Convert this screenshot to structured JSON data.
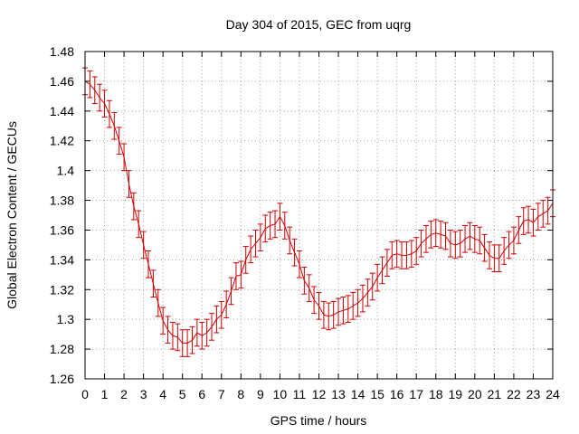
{
  "chart_data": {
    "type": "line",
    "title": "Day 304 of 2015, GEC from uqrg",
    "xlabel": "GPS time / hours",
    "ylabel": "Global Electron Content / GECUs",
    "xlim": [
      0,
      24
    ],
    "ylim": [
      1.26,
      1.48
    ],
    "xticks": [
      "0",
      "1",
      "2",
      "3",
      "4",
      "5",
      "6",
      "7",
      "8",
      "9",
      "10",
      "11",
      "12",
      "13",
      "14",
      "15",
      "16",
      "17",
      "18",
      "19",
      "20",
      "21",
      "22",
      "23",
      "24"
    ],
    "yticks": [
      "1.26",
      "1.28",
      "1.3",
      "1.32",
      "1.34",
      "1.36",
      "1.38",
      "1.4",
      "1.42",
      "1.44",
      "1.46",
      "1.48"
    ],
    "grid": true,
    "series": [
      {
        "color": "#cc0000",
        "error": 0.009,
        "x": [
          0,
          0.25,
          0.5,
          0.75,
          1,
          1.25,
          1.5,
          1.75,
          2,
          2.25,
          2.5,
          2.75,
          3,
          3.25,
          3.5,
          3.75,
          4,
          4.25,
          4.5,
          4.75,
          5,
          5.25,
          5.5,
          5.75,
          6,
          6.25,
          6.5,
          6.75,
          7,
          7.25,
          7.5,
          7.75,
          8,
          8.25,
          8.5,
          8.75,
          9,
          9.25,
          9.5,
          9.75,
          10,
          10.25,
          10.5,
          10.75,
          11,
          11.25,
          11.5,
          11.75,
          12,
          12.25,
          12.5,
          12.75,
          13,
          13.25,
          13.5,
          13.75,
          14,
          14.25,
          14.5,
          14.75,
          15,
          15.25,
          15.5,
          15.75,
          16,
          16.25,
          16.5,
          16.75,
          17,
          17.25,
          17.5,
          17.75,
          18,
          18.25,
          18.5,
          18.75,
          19,
          19.25,
          19.5,
          19.75,
          20,
          20.25,
          20.5,
          20.75,
          21,
          21.25,
          21.5,
          21.75,
          22,
          22.25,
          22.5,
          22.75,
          23,
          23.25,
          23.5,
          23.75,
          24
        ],
        "y": [
          1.46,
          1.458,
          1.454,
          1.449,
          1.445,
          1.438,
          1.43,
          1.42,
          1.409,
          1.391,
          1.376,
          1.364,
          1.35,
          1.337,
          1.324,
          1.311,
          1.299,
          1.293,
          1.289,
          1.288,
          1.284,
          1.284,
          1.286,
          1.291,
          1.289,
          1.291,
          1.295,
          1.3,
          1.303,
          1.31,
          1.319,
          1.329,
          1.33,
          1.34,
          1.347,
          1.351,
          1.355,
          1.361,
          1.363,
          1.364,
          1.369,
          1.363,
          1.353,
          1.345,
          1.337,
          1.326,
          1.321,
          1.313,
          1.309,
          1.303,
          1.302,
          1.303,
          1.305,
          1.306,
          1.307,
          1.309,
          1.311,
          1.314,
          1.318,
          1.322,
          1.328,
          1.333,
          1.338,
          1.343,
          1.344,
          1.343,
          1.343,
          1.344,
          1.346,
          1.351,
          1.354,
          1.357,
          1.358,
          1.357,
          1.356,
          1.351,
          1.35,
          1.351,
          1.354,
          1.356,
          1.354,
          1.353,
          1.348,
          1.343,
          1.341,
          1.341,
          1.346,
          1.35,
          1.353,
          1.36,
          1.366,
          1.367,
          1.365,
          1.369,
          1.371,
          1.373,
          1.378
        ]
      }
    ]
  }
}
